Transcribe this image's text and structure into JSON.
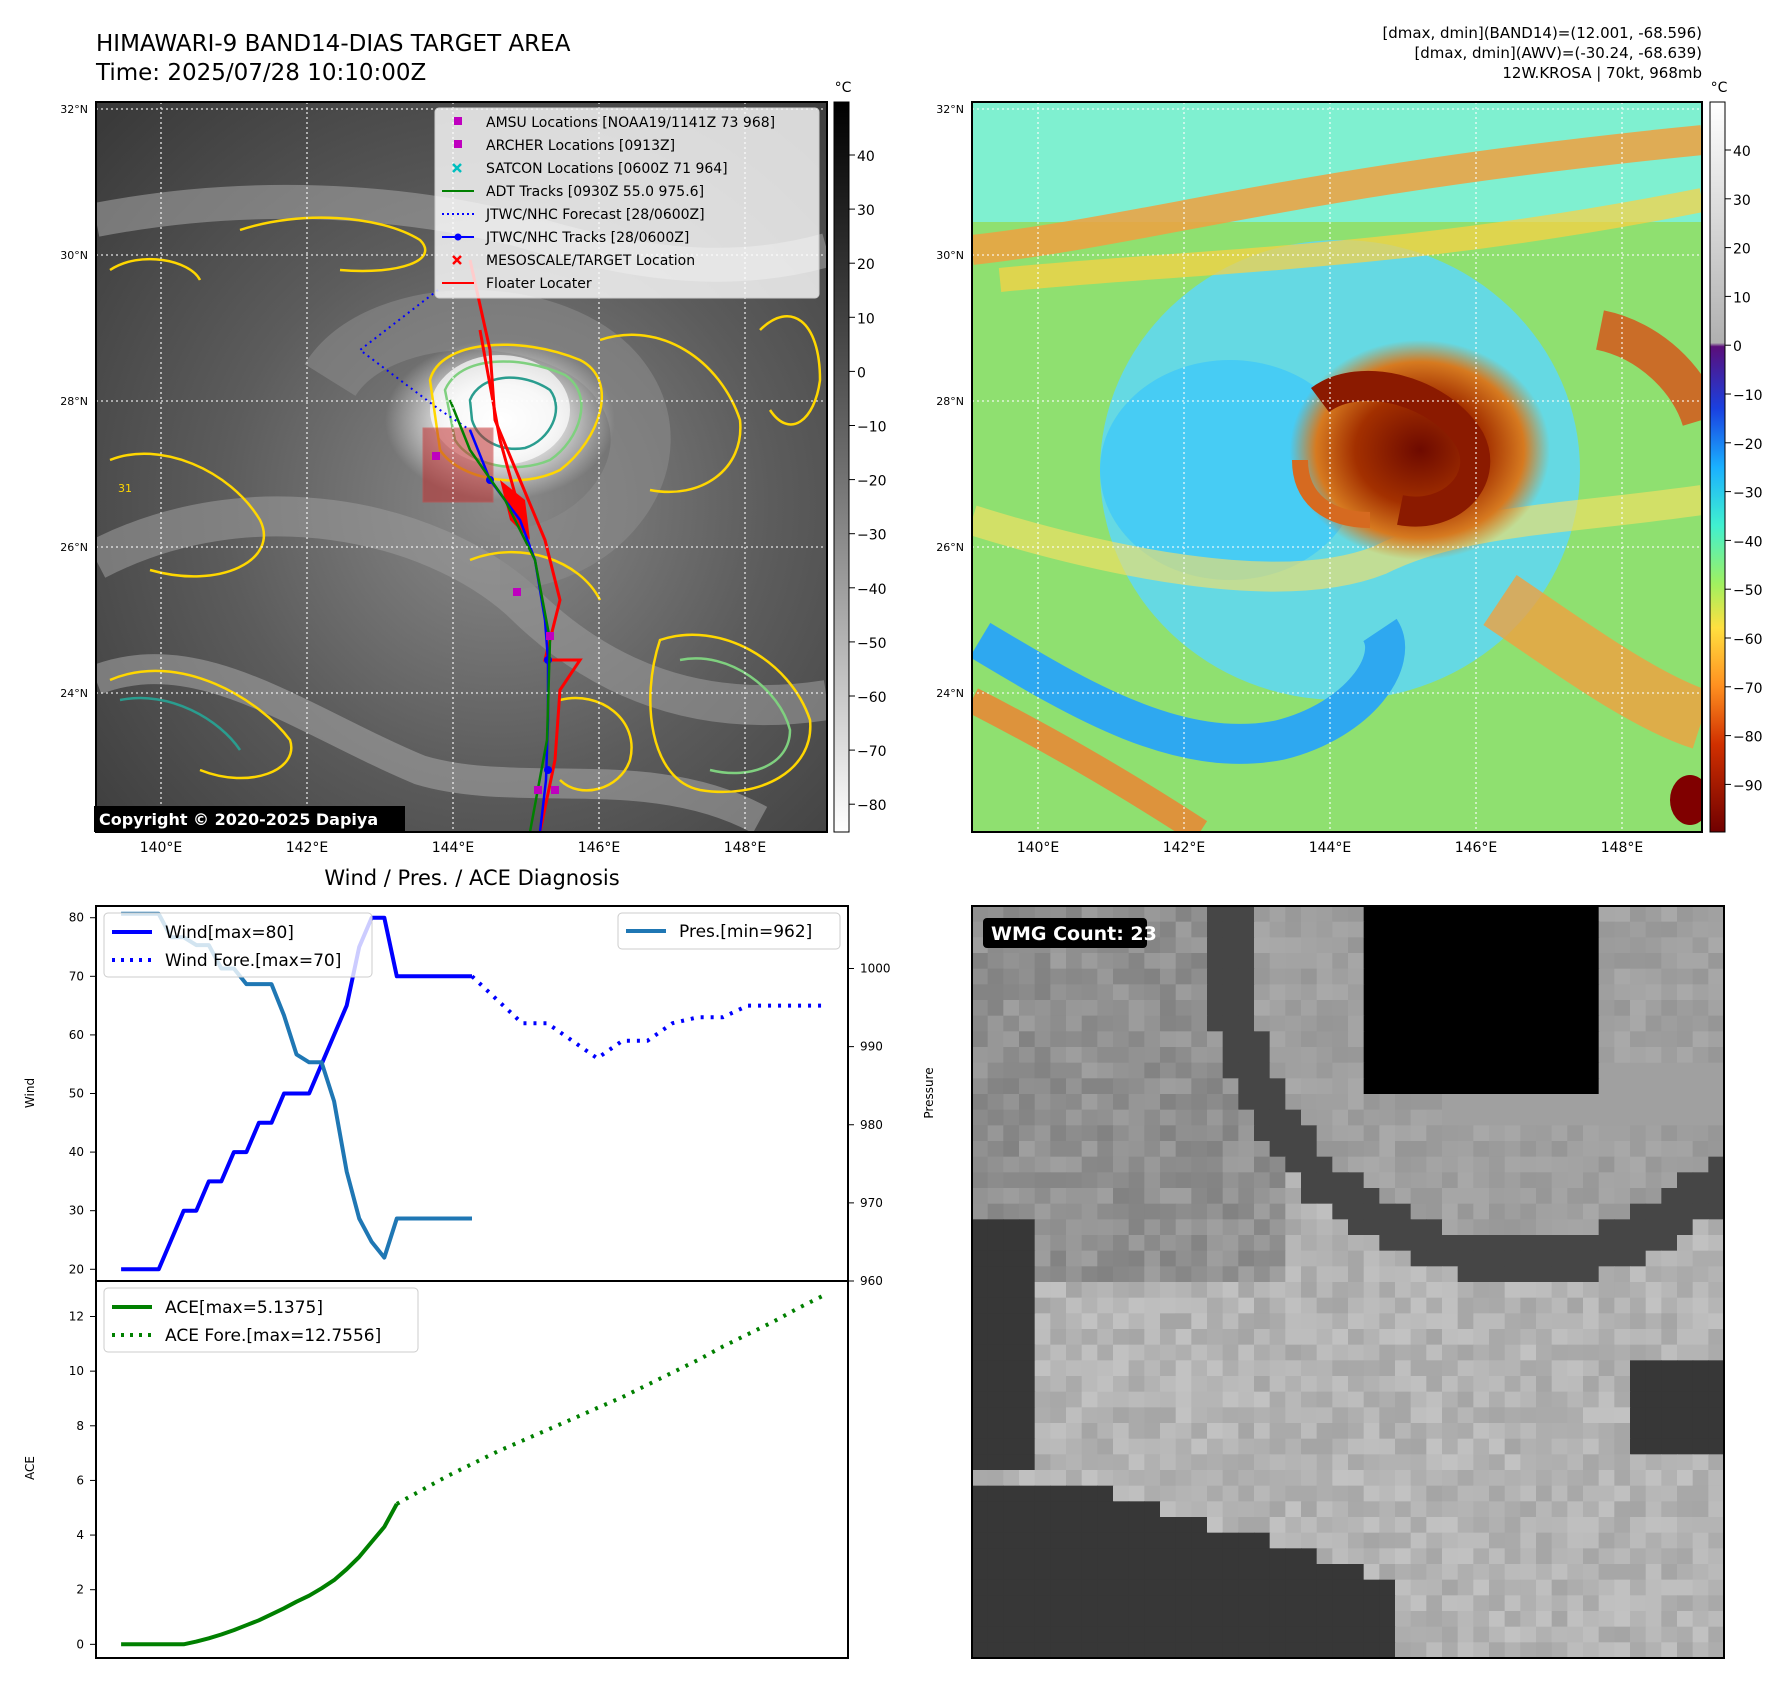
{
  "header": {
    "title_line1": "HIMAWARI-9 BAND14-DIAS TARGET AREA",
    "title_line2": "Time: 2025/07/28 10:10:00Z",
    "info_line1": "[dmax, dmin](BAND14)=(12.001, -68.596)",
    "info_line2": "[dmax, dmin](AWV)=(-30.24, -68.639)",
    "info_line3": "12W.KROSA | 70kt, 968mb"
  },
  "copyright": "Copyright © 2020-2025 Dapiya",
  "map": {
    "lat_labels": [
      "32°N",
      "30°N",
      "28°N",
      "26°N",
      "24°N"
    ],
    "lon_labels": [
      "140°E",
      "142°E",
      "144°E",
      "146°E",
      "148°E"
    ],
    "contour_label": "31",
    "legend": [
      {
        "label": "AMSU Locations [NOAA19/1141Z 73 968]",
        "color": "#bf00bf",
        "marker": "square"
      },
      {
        "label": "ARCHER Locations [0913Z]",
        "color": "#bf00bf",
        "marker": "square"
      },
      {
        "label": "SATCON Locations [0600Z 71 964]",
        "color": "#00bfbf",
        "marker": "x"
      },
      {
        "label": "ADT Tracks [0930Z 55.0 975.6]",
        "color": "#008000",
        "marker": "line"
      },
      {
        "label": "JTWC/NHC Forecast [28/0600Z]",
        "color": "#0000ff",
        "marker": "dotted"
      },
      {
        "label": "JTWC/NHC Tracks [28/0600Z]",
        "color": "#0000ff",
        "marker": "line-dot"
      },
      {
        "label": "MESOSCALE/TARGET Location",
        "color": "#ff0000",
        "marker": "x"
      },
      {
        "label": "Floater Locater",
        "color": "#ff0000",
        "marker": "line"
      }
    ]
  },
  "colorbar_gray": {
    "unit": "°C",
    "ticks": [
      "40",
      "30",
      "20",
      "10",
      "0",
      "−10",
      "−20",
      "−30",
      "−40",
      "−50",
      "−60",
      "−70",
      "−80"
    ]
  },
  "colorbar_color": {
    "unit": "°C",
    "ticks": [
      "40",
      "30",
      "20",
      "10",
      "0",
      "−10",
      "−20",
      "−30",
      "−40",
      "−50",
      "−60",
      "−70",
      "−80",
      "−90"
    ]
  },
  "wmg": {
    "label": "WMG Count: 23"
  },
  "chart_data": [
    {
      "type": "line",
      "title": "Wind / Pres. / ACE Diagnosis",
      "ylabel": "Wind",
      "ylim": [
        18,
        82
      ],
      "yticks": [
        "20",
        "30",
        "40",
        "50",
        "60",
        "70",
        "80"
      ],
      "ylabel_right": "Pressure",
      "ylim_right": [
        960,
        1008
      ],
      "yticks_right": [
        "960",
        "970",
        "980",
        "990",
        "1000"
      ],
      "xlim": [
        -2,
        58
      ],
      "series": [
        {
          "name": "Wind[max=80]",
          "color": "#0000ff",
          "style": "solid",
          "axis": "left",
          "x": [
            0,
            1,
            2,
            3,
            4,
            5,
            6,
            7,
            8,
            9,
            10,
            11,
            12,
            13,
            14,
            15,
            16,
            17,
            18,
            19,
            20,
            21,
            22,
            23,
            24,
            25,
            26,
            27,
            28
          ],
          "y": [
            20,
            20,
            20,
            20,
            25,
            30,
            30,
            35,
            35,
            40,
            40,
            45,
            45,
            50,
            50,
            50,
            55,
            60,
            65,
            75,
            80,
            80,
            70,
            70,
            70,
            70,
            70,
            70,
            70
          ]
        },
        {
          "name": "Wind Fore.[max=70]",
          "color": "#0000ff",
          "style": "dotted",
          "axis": "left",
          "x": [
            28,
            30,
            32,
            34,
            36,
            38,
            40,
            42,
            44,
            46,
            48,
            50,
            52,
            54,
            56
          ],
          "y": [
            70,
            66,
            62,
            62,
            59,
            56,
            59,
            59,
            62,
            63,
            63,
            65,
            65,
            65,
            65
          ]
        },
        {
          "name": "Pres.[min=962]",
          "color": "#1f77b4",
          "style": "solid",
          "axis": "right",
          "x": [
            0,
            1,
            2,
            3,
            4,
            5,
            6,
            7,
            8,
            9,
            10,
            11,
            12,
            13,
            14,
            15,
            16,
            17,
            18,
            19,
            20,
            21,
            22,
            23,
            24,
            25,
            26,
            27,
            28
          ],
          "y": [
            1007,
            1007,
            1007,
            1007,
            1004,
            1004,
            1003,
            1003,
            1000,
            1000,
            998,
            998,
            998,
            994,
            989,
            988,
            988,
            983,
            974,
            968,
            965,
            963,
            968,
            968,
            968,
            968,
            968,
            968,
            968
          ]
        }
      ]
    },
    {
      "type": "line",
      "ylabel": "ACE",
      "ylim": [
        -0.5,
        13.3
      ],
      "yticks": [
        "0",
        "2",
        "4",
        "6",
        "8",
        "10",
        "12"
      ],
      "xlim": [
        -2,
        58
      ],
      "series": [
        {
          "name": "ACE[max=5.1375]",
          "color": "#008000",
          "style": "solid",
          "x": [
            0,
            1,
            2,
            3,
            4,
            5,
            6,
            7,
            8,
            9,
            10,
            11,
            12,
            13,
            14,
            15,
            16,
            17,
            18,
            19,
            20,
            21,
            22
          ],
          "y": [
            0,
            0,
            0,
            0,
            0,
            0,
            0.1,
            0.22,
            0.36,
            0.52,
            0.7,
            0.88,
            1.1,
            1.32,
            1.56,
            1.78,
            2.05,
            2.35,
            2.75,
            3.2,
            3.75,
            4.3,
            5.14
          ]
        },
        {
          "name": "ACE Fore.[max=12.7556]",
          "color": "#008000",
          "style": "dotted",
          "x": [
            22,
            24,
            26,
            28,
            30,
            32,
            34,
            36,
            38,
            40,
            42,
            44,
            46,
            48,
            50,
            52,
            54,
            56
          ],
          "y": [
            5.14,
            5.65,
            6.15,
            6.6,
            7.05,
            7.45,
            7.85,
            8.25,
            8.65,
            9.05,
            9.5,
            9.95,
            10.4,
            10.9,
            11.35,
            11.8,
            12.3,
            12.76
          ]
        }
      ]
    }
  ]
}
